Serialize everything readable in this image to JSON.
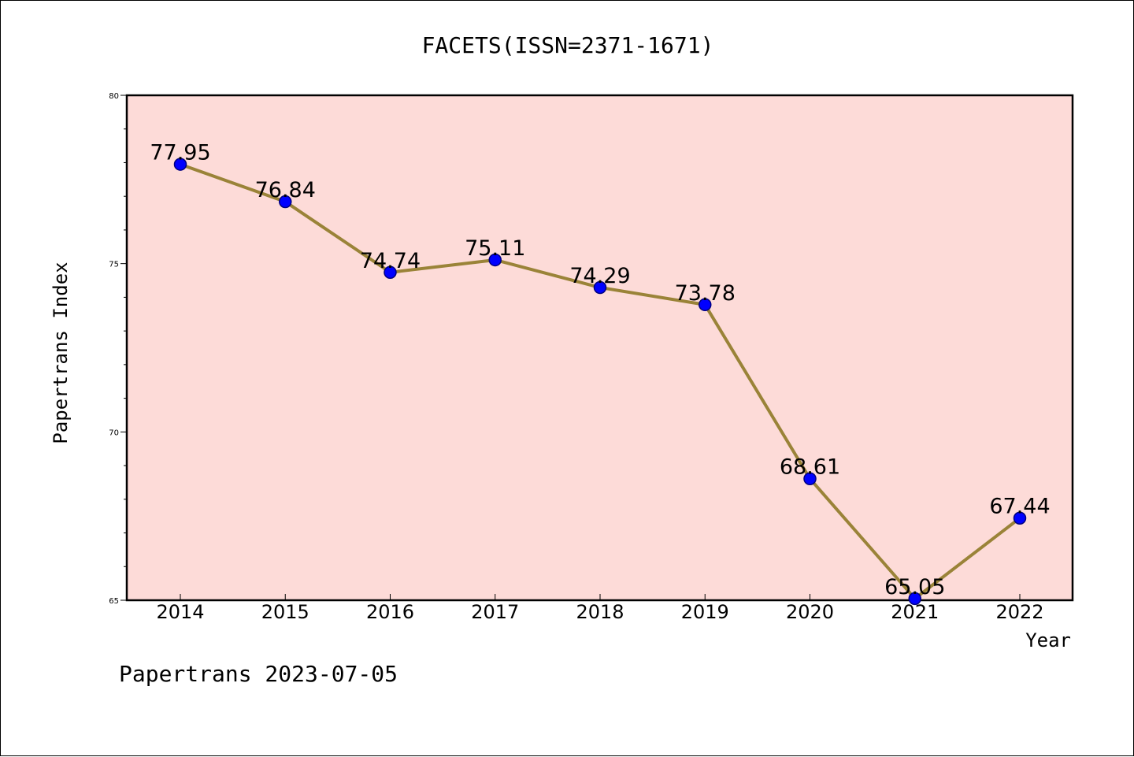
{
  "chart_data": {
    "type": "line",
    "title": "FACETS(ISSN=2371-1671)",
    "xlabel": "Year",
    "ylabel": "Papertrans Index",
    "categories": [
      "2014",
      "2015",
      "2016",
      "2017",
      "2018",
      "2019",
      "2020",
      "2021",
      "2022"
    ],
    "values": [
      77.95,
      76.84,
      74.74,
      75.11,
      74.29,
      73.78,
      68.61,
      65.05,
      67.44
    ],
    "data_labels": [
      "77.95",
      "76.84",
      "74.74",
      "75.11",
      "74.29",
      "73.78",
      "68.61",
      "65.05",
      "67.44"
    ],
    "ylim": [
      65,
      80
    ],
    "yticks": [
      65,
      70,
      75,
      80
    ],
    "grid": false,
    "legend": "none",
    "footer": "Papertrans 2023-07-05",
    "colors": {
      "plot_background": "#fddbd8",
      "line": "#9a8338",
      "marker_fill": "#0000ff",
      "marker_edge": "#000080"
    }
  }
}
